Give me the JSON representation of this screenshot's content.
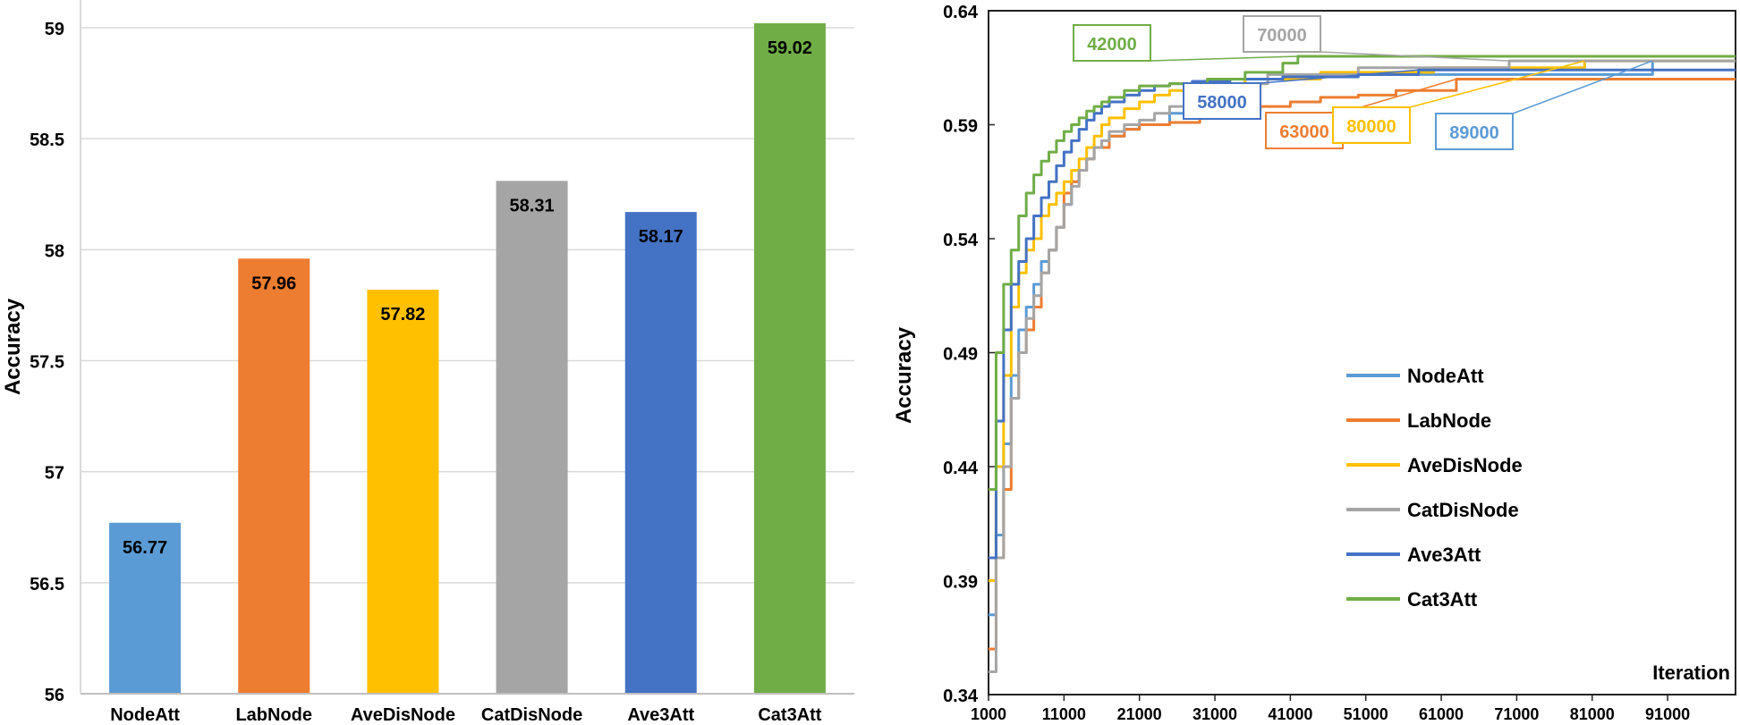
{
  "colors": {
    "NodeAtt": "#5b9bd5",
    "LabNode": "#ed7d31",
    "AveDisNode": "#ffc000",
    "CatDisNode": "#a5a5a5",
    "Ave3Att": "#4472c4",
    "Cat3Att": "#70ad47"
  },
  "chart_data": [
    {
      "type": "bar",
      "title": "",
      "xlabel": "",
      "ylabel": "Accuracy",
      "ylim": [
        56,
        59
      ],
      "yticks": [
        56,
        56.5,
        57,
        57.5,
        58,
        58.5,
        59
      ],
      "ytick_labels": [
        "56",
        "56.5",
        "57",
        "57.5",
        "58",
        "58.5",
        "59"
      ],
      "grid": true,
      "categories": [
        "NodeAtt",
        "LabNode",
        "AveDisNode",
        "CatDisNode",
        "Ave3Att",
        "Cat3Att"
      ],
      "values": [
        56.77,
        57.96,
        57.82,
        58.31,
        58.17,
        59.02
      ],
      "value_labels": [
        "56.77",
        "57.96",
        "57.82",
        "58.31",
        "58.17",
        "59.02"
      ]
    },
    {
      "type": "line",
      "title": "",
      "xlabel": "Iteration",
      "ylabel": "Accuracy",
      "xlim": [
        1000,
        100000
      ],
      "ylim": [
        0.34,
        0.64
      ],
      "xticks": [
        1000,
        11000,
        21000,
        31000,
        41000,
        51000,
        61000,
        71000,
        81000,
        91000
      ],
      "xtick_labels": [
        "1000",
        "11000",
        "21000",
        "31000",
        "41000",
        "51000",
        "61000",
        "71000",
        "81000",
        "91000"
      ],
      "yticks": [
        0.34,
        0.39,
        0.44,
        0.49,
        0.54,
        0.59,
        0.64
      ],
      "ytick_labels": [
        "0.34",
        "0.39",
        "0.44",
        "0.49",
        "0.54",
        "0.59",
        "0.64"
      ],
      "legend_position": "right",
      "series": [
        {
          "name": "NodeAtt",
          "x": [
            1000,
            2000,
            3000,
            4000,
            5000,
            6000,
            7000,
            8000,
            9000,
            10000,
            11000,
            12000,
            13000,
            14000,
            15000,
            17000,
            19000,
            21000,
            23000,
            25000,
            27000,
            29000,
            35000,
            45000,
            89000,
            100000
          ],
          "y": [
            0.375,
            0.41,
            0.45,
            0.48,
            0.5,
            0.51,
            0.52,
            0.53,
            0.535,
            0.545,
            0.555,
            0.565,
            0.57,
            0.575,
            0.58,
            0.585,
            0.588,
            0.59,
            0.59,
            0.595,
            0.6,
            0.605,
            0.61,
            0.612,
            0.618,
            0.618
          ]
        },
        {
          "name": "LabNode",
          "x": [
            1000,
            2000,
            3000,
            4000,
            5000,
            6000,
            7000,
            8000,
            9000,
            10000,
            11000,
            12000,
            13000,
            14000,
            15000,
            17000,
            19000,
            21000,
            25000,
            29000,
            33000,
            37000,
            41000,
            45000,
            50000,
            55000,
            63000,
            100000
          ],
          "y": [
            0.36,
            0.4,
            0.43,
            0.47,
            0.49,
            0.5,
            0.51,
            0.525,
            0.535,
            0.545,
            0.56,
            0.565,
            0.57,
            0.575,
            0.58,
            0.585,
            0.588,
            0.59,
            0.591,
            0.593,
            0.596,
            0.598,
            0.6,
            0.602,
            0.603,
            0.605,
            0.61,
            0.61
          ]
        },
        {
          "name": "AveDisNode",
          "x": [
            1000,
            2000,
            3000,
            4000,
            5000,
            6000,
            7000,
            8000,
            9000,
            10000,
            11000,
            12000,
            13000,
            14000,
            15000,
            16000,
            17000,
            19000,
            21000,
            23000,
            25000,
            27000,
            30000,
            35000,
            45000,
            60000,
            80000,
            100000
          ],
          "y": [
            0.39,
            0.44,
            0.48,
            0.51,
            0.525,
            0.535,
            0.54,
            0.55,
            0.555,
            0.56,
            0.565,
            0.57,
            0.575,
            0.58,
            0.585,
            0.59,
            0.593,
            0.597,
            0.6,
            0.603,
            0.605,
            0.607,
            0.608,
            0.61,
            0.613,
            0.615,
            0.618,
            0.618
          ]
        },
        {
          "name": "CatDisNode",
          "x": [
            1000,
            2000,
            3000,
            4000,
            5000,
            6000,
            7000,
            8000,
            9000,
            10000,
            11000,
            12000,
            13000,
            14000,
            15000,
            16000,
            17000,
            19000,
            21000,
            23000,
            25000,
            27000,
            29000,
            31000,
            34000,
            38000,
            50000,
            70000,
            100000
          ],
          "y": [
            0.35,
            0.4,
            0.44,
            0.47,
            0.49,
            0.505,
            0.515,
            0.525,
            0.535,
            0.545,
            0.555,
            0.563,
            0.57,
            0.575,
            0.58,
            0.583,
            0.587,
            0.59,
            0.592,
            0.595,
            0.598,
            0.6,
            0.603,
            0.605,
            0.608,
            0.612,
            0.615,
            0.618,
            0.618
          ]
        },
        {
          "name": "Ave3Att",
          "x": [
            1000,
            2000,
            3000,
            4000,
            5000,
            6000,
            7000,
            8000,
            9000,
            10000,
            11000,
            12000,
            13000,
            14000,
            15000,
            16000,
            17000,
            19000,
            21000,
            23000,
            25000,
            28000,
            33000,
            40000,
            50000,
            58000,
            100000
          ],
          "y": [
            0.4,
            0.46,
            0.5,
            0.52,
            0.53,
            0.54,
            0.55,
            0.558,
            0.565,
            0.572,
            0.578,
            0.583,
            0.588,
            0.592,
            0.595,
            0.598,
            0.6,
            0.603,
            0.605,
            0.607,
            0.608,
            0.609,
            0.61,
            0.611,
            0.612,
            0.614,
            0.614
          ]
        },
        {
          "name": "Cat3Att",
          "x": [
            1000,
            2000,
            3000,
            4000,
            5000,
            6000,
            7000,
            8000,
            9000,
            10000,
            11000,
            12000,
            13000,
            14000,
            15000,
            16000,
            17000,
            19000,
            21000,
            25000,
            30000,
            35000,
            40000,
            42000,
            100000
          ],
          "y": [
            0.43,
            0.49,
            0.52,
            0.535,
            0.55,
            0.56,
            0.568,
            0.574,
            0.578,
            0.583,
            0.587,
            0.59,
            0.593,
            0.596,
            0.598,
            0.6,
            0.602,
            0.605,
            0.607,
            0.608,
            0.61,
            0.613,
            0.617,
            0.62,
            0.62
          ]
        }
      ],
      "annotations": [
        {
          "text": "42000",
          "series": "Cat3Att",
          "x": 42000,
          "y": 0.62
        },
        {
          "text": "70000",
          "series": "CatDisNode",
          "x": 70000,
          "y": 0.618
        },
        {
          "text": "58000",
          "series": "Ave3Att",
          "x": 58000,
          "y": 0.614
        },
        {
          "text": "63000",
          "series": "LabNode",
          "x": 63000,
          "y": 0.61
        },
        {
          "text": "80000",
          "series": "AveDisNode",
          "x": 80000,
          "y": 0.618
        },
        {
          "text": "89000",
          "series": "NodeAtt",
          "x": 89000,
          "y": 0.618
        }
      ]
    }
  ]
}
